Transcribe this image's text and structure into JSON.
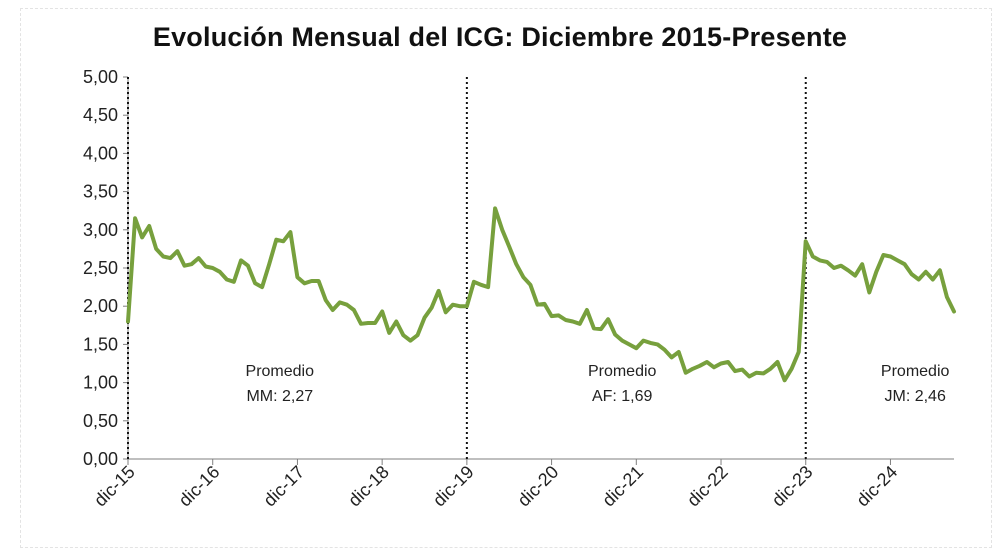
{
  "chart_data": {
    "type": "line",
    "title": "Evolución Mensual del ICG: Diciembre 2015-Presente",
    "xlabel": "",
    "ylabel": "",
    "ylim": [
      0,
      5
    ],
    "ytick_labels": [
      "0,00",
      "0,50",
      "1,00",
      "1,50",
      "2,00",
      "2,50",
      "3,00",
      "3,50",
      "4,00",
      "4,50",
      "5,00"
    ],
    "ytick_values": [
      0,
      0.5,
      1,
      1.5,
      2,
      2.5,
      3,
      3.5,
      4,
      4.5,
      5
    ],
    "xtick_labels": [
      "dic-15",
      "dic-16",
      "dic-17",
      "dic-18",
      "dic-19",
      "dic-20",
      "dic-21",
      "dic-22",
      "dic-23",
      "dic-24"
    ],
    "xtick_months": [
      0,
      12,
      24,
      36,
      48,
      60,
      72,
      84,
      96,
      108
    ],
    "x_max_month": 117,
    "line_color": "#77a03d",
    "period_dividers": [
      0,
      48,
      96
    ],
    "annotations": [
      {
        "line1": "Promedio",
        "line2": "MM: 2,27",
        "month": 21.5
      },
      {
        "line1": "Promedio",
        "line2": "AF: 1,69",
        "month": 70
      },
      {
        "line1": "Promedio",
        "line2": "JM: 2,46",
        "month": 111.5
      }
    ],
    "series": [
      {
        "name": "ICG",
        "x": [
          0,
          1,
          2,
          3,
          4,
          5,
          6,
          7,
          8,
          9,
          10,
          11,
          12,
          13,
          14,
          15,
          16,
          17,
          18,
          19,
          20,
          21,
          22,
          23,
          24,
          25,
          26,
          27,
          28,
          29,
          30,
          31,
          32,
          33,
          34,
          35,
          36,
          37,
          38,
          39,
          40,
          41,
          42,
          43,
          44,
          45,
          46,
          47,
          48,
          49,
          50,
          51,
          52,
          53,
          54,
          55,
          56,
          57,
          58,
          59,
          60,
          61,
          62,
          63,
          64,
          65,
          66,
          67,
          68,
          69,
          70,
          71,
          72,
          73,
          74,
          75,
          76,
          77,
          78,
          79,
          80,
          81,
          82,
          83,
          84,
          85,
          86,
          87,
          88,
          89,
          90,
          91,
          92,
          93,
          94,
          95,
          96,
          97,
          98,
          99,
          100,
          101,
          102,
          103,
          104,
          105,
          106,
          107,
          108,
          109,
          110,
          111,
          112,
          113,
          114,
          115,
          116,
          117
        ],
        "values": [
          1.8,
          3.15,
          2.9,
          3.05,
          2.75,
          2.65,
          2.63,
          2.72,
          2.53,
          2.55,
          2.63,
          2.52,
          2.5,
          2.45,
          2.35,
          2.32,
          2.6,
          2.53,
          2.3,
          2.25,
          2.55,
          2.87,
          2.85,
          2.97,
          2.38,
          2.3,
          2.33,
          2.33,
          2.08,
          1.95,
          2.05,
          2.02,
          1.95,
          1.77,
          1.78,
          1.78,
          1.93,
          1.65,
          1.8,
          1.62,
          1.55,
          1.62,
          1.85,
          1.98,
          2.2,
          1.92,
          2.02,
          2.0,
          2.0,
          2.32,
          2.28,
          2.25,
          3.28,
          3.0,
          2.78,
          2.55,
          2.38,
          2.28,
          2.02,
          2.03,
          1.87,
          1.88,
          1.82,
          1.8,
          1.77,
          1.95,
          1.71,
          1.7,
          1.83,
          1.63,
          1.55,
          1.5,
          1.45,
          1.55,
          1.52,
          1.5,
          1.43,
          1.33,
          1.4,
          1.13,
          1.18,
          1.22,
          1.27,
          1.2,
          1.25,
          1.27,
          1.15,
          1.17,
          1.08,
          1.13,
          1.12,
          1.18,
          1.27,
          1.03,
          1.18,
          1.4,
          2.85,
          2.65,
          2.6,
          2.58,
          2.5,
          2.53,
          2.47,
          2.4,
          2.55,
          2.18,
          2.45,
          2.67,
          2.65,
          2.6,
          2.55,
          2.42,
          2.35,
          2.45,
          2.35,
          2.47,
          2.12,
          1.93
        ]
      }
    ]
  }
}
